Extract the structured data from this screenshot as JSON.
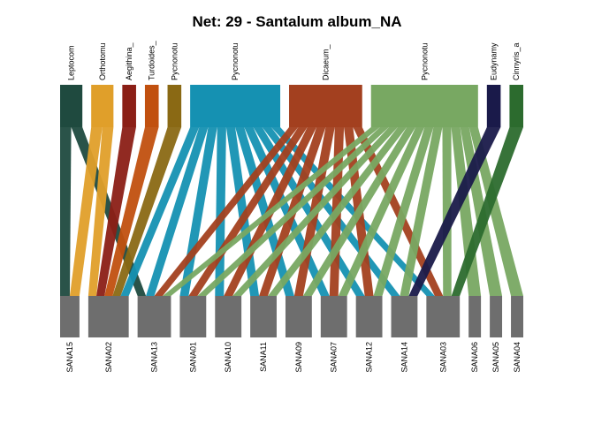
{
  "chart_data": {
    "type": "bipartite",
    "title": "Net: 29 - Santalum album_NA",
    "higher_level": [
      {
        "label": "Leptocom",
        "color": "#1f4a3f"
      },
      {
        "label": "Orthotomu",
        "color": "#e09f2a"
      },
      {
        "label": "Aegithina_",
        "color": "#8b1f16"
      },
      {
        "label": "Turdoides_",
        "color": "#c1500f"
      },
      {
        "label": "Pycnonotu",
        "color": "#8a6914"
      },
      {
        "label": "Pycnonotu",
        "color": "#1591b2"
      },
      {
        "label": "Dicaeum_",
        "color": "#a3401f"
      },
      {
        "label": "Pycnonotu",
        "color": "#78a862"
      },
      {
        "label": "Eudynamy",
        "color": "#1a1a4a"
      },
      {
        "label": "Cinnyris_a",
        "color": "#2c6b2e"
      }
    ],
    "lower_level": [
      "SANA15",
      "SANA02",
      "SANA13",
      "SANA01",
      "SANA10",
      "SANA11",
      "SANA09",
      "SANA07",
      "SANA12",
      "SANA14",
      "SANA03",
      "SANA06",
      "SANA05",
      "SANA04"
    ],
    "lower_color": "#6e6e6e",
    "links": [
      {
        "from": 0,
        "to": "SANA15"
      },
      {
        "from": 0,
        "to": "SANA13"
      },
      {
        "from": 1,
        "to": "SANA15"
      },
      {
        "from": 1,
        "to": "SANA02"
      },
      {
        "from": 2,
        "to": "SANA02"
      },
      {
        "from": 3,
        "to": "SANA02"
      },
      {
        "from": 4,
        "to": "SANA02"
      },
      {
        "from": 5,
        "to": "SANA02"
      },
      {
        "from": 5,
        "to": "SANA13"
      },
      {
        "from": 5,
        "to": "SANA01"
      },
      {
        "from": 5,
        "to": "SANA10"
      },
      {
        "from": 5,
        "to": "SANA11"
      },
      {
        "from": 5,
        "to": "SANA09"
      },
      {
        "from": 5,
        "to": "SANA07"
      },
      {
        "from": 5,
        "to": "SANA12"
      },
      {
        "from": 5,
        "to": "SANA14"
      },
      {
        "from": 5,
        "to": "SANA03"
      },
      {
        "from": 6,
        "to": "SANA13"
      },
      {
        "from": 6,
        "to": "SANA01"
      },
      {
        "from": 6,
        "to": "SANA10"
      },
      {
        "from": 6,
        "to": "SANA11"
      },
      {
        "from": 6,
        "to": "SANA09"
      },
      {
        "from": 6,
        "to": "SANA07"
      },
      {
        "from": 6,
        "to": "SANA12"
      },
      {
        "from": 6,
        "to": "SANA03"
      },
      {
        "from": 7,
        "to": "SANA13"
      },
      {
        "from": 7,
        "to": "SANA01"
      },
      {
        "from": 7,
        "to": "SANA10"
      },
      {
        "from": 7,
        "to": "SANA11"
      },
      {
        "from": 7,
        "to": "SANA09"
      },
      {
        "from": 7,
        "to": "SANA07"
      },
      {
        "from": 7,
        "to": "SANA12"
      },
      {
        "from": 7,
        "to": "SANA14"
      },
      {
        "from": 7,
        "to": "SANA03"
      },
      {
        "from": 7,
        "to": "SANA06"
      },
      {
        "from": 7,
        "to": "SANA05"
      },
      {
        "from": 7,
        "to": "SANA04"
      },
      {
        "from": 8,
        "to": "SANA14"
      },
      {
        "from": 9,
        "to": "SANA03"
      }
    ]
  }
}
